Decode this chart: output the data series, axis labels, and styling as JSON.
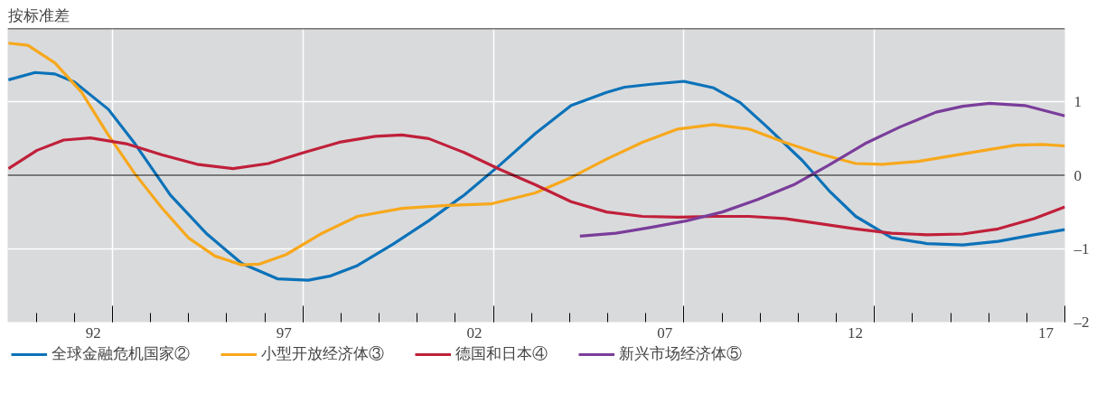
{
  "chart_data": {
    "type": "line",
    "ylabel": "按标准差",
    "xlim": [
      1989.75,
      2017.5
    ],
    "ylim": [
      -2,
      2
    ],
    "xticks": [
      {
        "value": 1992,
        "label": "92"
      },
      {
        "value": 1997,
        "label": "97"
      },
      {
        "value": 2002,
        "label": "02"
      },
      {
        "value": 2007,
        "label": "07"
      },
      {
        "value": 2012,
        "label": "12"
      },
      {
        "value": 2017,
        "label": "17"
      },
      {
        "value": 1990.5,
        "label": null
      },
      {
        "value": 1991.5,
        "label": null
      },
      {
        "value": 1992.5,
        "label": null
      },
      {
        "value": 1993.5,
        "label": null
      },
      {
        "value": 1994.5,
        "label": null
      },
      {
        "value": 1995.5,
        "label": null
      },
      {
        "value": 1996.5,
        "label": null
      },
      {
        "value": 1997.5,
        "label": null
      },
      {
        "value": 1998.5,
        "label": null
      },
      {
        "value": 1999.5,
        "label": null
      },
      {
        "value": 2000.5,
        "label": null
      },
      {
        "value": 2001.5,
        "label": null
      },
      {
        "value": 2002.5,
        "label": null
      },
      {
        "value": 2003.5,
        "label": null
      },
      {
        "value": 2004.5,
        "label": null
      },
      {
        "value": 2005.5,
        "label": null
      },
      {
        "value": 2006.5,
        "label": null
      },
      {
        "value": 2007.5,
        "label": null
      },
      {
        "value": 2008.5,
        "label": null
      },
      {
        "value": 2009.5,
        "label": null
      },
      {
        "value": 2010.5,
        "label": null
      },
      {
        "value": 2011.5,
        "label": null
      },
      {
        "value": 2012.5,
        "label": null
      },
      {
        "value": 2013.5,
        "label": null
      },
      {
        "value": 2014.5,
        "label": null
      },
      {
        "value": 2015.5,
        "label": null
      },
      {
        "value": 2016.5,
        "label": null
      },
      {
        "value": 2017.5,
        "label": null
      }
    ],
    "yticks": [
      1,
      0,
      {
        "value": -1,
        "label": "–1"
      },
      {
        "value": -2,
        "label": "–2"
      }
    ],
    "grid": true,
    "legend": "bottom",
    "ref_lines": [
      {
        "axis": "y",
        "value": 0,
        "color": "#000000"
      }
    ],
    "series": [
      {
        "name": "全球金融危机国家②",
        "color": "#0b72b9",
        "x": [
          1989.77,
          1990.47,
          1990.99,
          1991.5,
          1992.39,
          1993.09,
          1994.02,
          1994.96,
          1995.89,
          1996.83,
          1997.64,
          1998.23,
          1998.93,
          1999.86,
          2000.8,
          2001.73,
          2002.67,
          2003.6,
          2004.54,
          2005.47,
          2005.94,
          2006.64,
          2007.5,
          2008.28,
          2008.98,
          2009.68,
          2010.61,
          2011.31,
          2012.01,
          2012.95,
          2013.88,
          2014.82,
          2015.75,
          2016.69,
          2017.5
        ],
        "values": [
          1.3,
          1.4,
          1.38,
          1.27,
          0.9,
          0.43,
          -0.27,
          -0.79,
          -1.2,
          -1.41,
          -1.43,
          -1.37,
          -1.23,
          -0.94,
          -0.62,
          -0.27,
          0.14,
          0.57,
          0.95,
          1.13,
          1.2,
          1.24,
          1.28,
          1.19,
          0.99,
          0.66,
          0.2,
          -0.21,
          -0.56,
          -0.85,
          -0.93,
          -0.95,
          -0.9,
          -0.81,
          -0.74
        ]
      },
      {
        "name": "小型开放经济体③",
        "color": "#f7a81b",
        "x": [
          1989.77,
          1990.28,
          1990.99,
          1991.69,
          1992.39,
          1993.09,
          1993.79,
          1994.49,
          1995.19,
          1995.89,
          1996.36,
          1997.06,
          1998.0,
          1998.93,
          2000.1,
          2001.27,
          2002.43,
          2003.6,
          2004.54,
          2005.47,
          2006.41,
          2007.34,
          2008.28,
          2009.21,
          2010.14,
          2011.08,
          2012.01,
          2012.71,
          2013.65,
          2014.82,
          2016.22,
          2016.92,
          2017.5
        ],
        "values": [
          1.8,
          1.77,
          1.53,
          1.13,
          0.55,
          0.02,
          -0.44,
          -0.85,
          -1.1,
          -1.22,
          -1.21,
          -1.08,
          -0.79,
          -0.56,
          -0.45,
          -0.41,
          -0.39,
          -0.24,
          -0.03,
          0.22,
          0.45,
          0.63,
          0.69,
          0.63,
          0.45,
          0.29,
          0.16,
          0.15,
          0.19,
          0.29,
          0.41,
          0.42,
          0.4
        ]
      },
      {
        "name": "德国和日本④",
        "color": "#c0203a",
        "x": [
          1989.77,
          1990.52,
          1991.22,
          1991.92,
          1992.86,
          1993.79,
          1994.72,
          1995.66,
          1996.59,
          1997.53,
          1998.46,
          1999.4,
          2000.1,
          2000.8,
          2001.73,
          2002.67,
          2003.6,
          2004.54,
          2005.47,
          2006.41,
          2007.34,
          2008.28,
          2009.21,
          2010.14,
          2011.08,
          2012.01,
          2012.95,
          2013.88,
          2014.82,
          2015.75,
          2016.69,
          2017.5
        ],
        "values": [
          0.09,
          0.34,
          0.48,
          0.51,
          0.43,
          0.28,
          0.15,
          0.09,
          0.16,
          0.31,
          0.45,
          0.53,
          0.55,
          0.5,
          0.31,
          0.08,
          -0.13,
          -0.36,
          -0.5,
          -0.56,
          -0.57,
          -0.56,
          -0.56,
          -0.59,
          -0.66,
          -0.73,
          -0.79,
          -0.81,
          -0.8,
          -0.73,
          -0.59,
          -0.43
        ]
      },
      {
        "name": "新兴市场经济体⑤",
        "color": "#7a3d9a",
        "x": [
          2004.77,
          2005.71,
          2006.64,
          2007.57,
          2008.51,
          2009.44,
          2010.38,
          2011.31,
          2012.25,
          2013.18,
          2014.12,
          2014.82,
          2015.52,
          2016.45,
          2017.5
        ],
        "values": [
          -0.83,
          -0.79,
          -0.71,
          -0.62,
          -0.5,
          -0.33,
          -0.13,
          0.14,
          0.43,
          0.66,
          0.86,
          0.94,
          0.98,
          0.95,
          0.81
        ]
      }
    ]
  }
}
